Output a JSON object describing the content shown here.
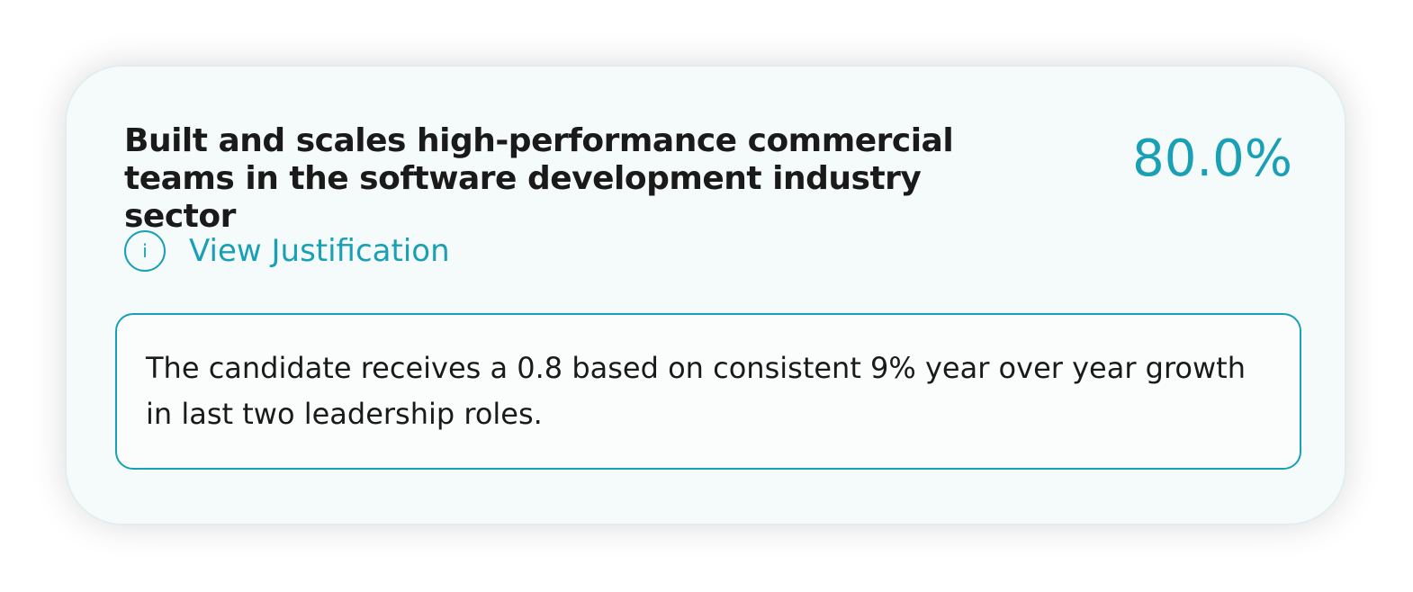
{
  "card": {
    "title": "Built and scales high-performance commercial teams in the software development industry sector",
    "score": "80.0%",
    "toggle": {
      "icon": "i",
      "label": "View Justification"
    },
    "justification": "The candidate receives a 0.8 based on consistent 9% year over year growth in last two leadership roles."
  }
}
